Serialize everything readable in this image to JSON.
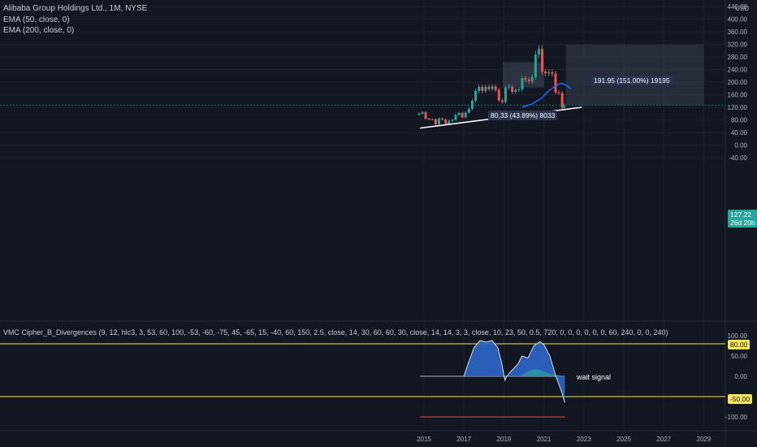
{
  "header": {
    "title": "Alibaba Group Holdings Ltd., 1M, NYSE",
    "ema50": "EMA (50, close, 0)",
    "ema200": "EMA (200, close, 0)"
  },
  "indicator": {
    "label": "VMC Cipher_B_Divergences (9, 12, hlc3, 3, 53, 60, 100, -53, -60, -75, 45, -65, 15, -40, 60, 150, 2.5, close, 14, 30, 60, 60, 30, close, 14, 14, 3, 3, close, 10, 23, 50, 0.5, 720, 0, 0, 0, 0, 0, 0, 60, 240, 0, 0, 240)",
    "annotation": "wait signal",
    "levels": {
      "upper": 80,
      "lower": -50
    },
    "level_labels": {
      "upper": "80.00",
      "lower": "-50.00"
    },
    "ticks": [
      "100.00",
      "50.00",
      "0.00",
      "-50.00",
      "-100.00"
    ]
  },
  "axis": {
    "currency": "USD",
    "price_ticks": [
      "440.00",
      "400.00",
      "360.00",
      "320.00",
      "280.00",
      "240.00",
      "200.00",
      "160.00",
      "120.00",
      "80.00",
      "40.00",
      "0.00",
      "-40.00"
    ],
    "years": [
      "2015",
      "2017",
      "2019",
      "2021",
      "2023",
      "2025",
      "2027",
      "2029"
    ]
  },
  "last_price": {
    "value": "127.22",
    "countdown": "26d 20h"
  },
  "measure_boxes": [
    {
      "label": "80.33 (43.89%) 8033",
      "from": 183,
      "to": 263
    },
    {
      "label": "191.95 (151.00%) 19195",
      "from": 127,
      "to": 319
    }
  ],
  "colors": {
    "background": "#131722",
    "up": "#26a69a",
    "down": "#ef5350",
    "ema": "#2962ff",
    "trendline": "#ffffff",
    "level": "#f5e653",
    "wave_fill": "#2e66c9",
    "money_flow": "#26a69a",
    "badge_price": "#26a69a"
  },
  "chart_data": {
    "type": "candlestick",
    "title": "Alibaba Group Holdings Ltd., 1M, NYSE",
    "x_range": [
      "2014-09",
      "2029-12"
    ],
    "y_range": [
      -40,
      440
    ],
    "series": [
      {
        "name": "EMA (50, close, 0)",
        "points": [
          [
            2019.9,
            120
          ],
          [
            2020.4,
            130
          ],
          [
            2020.9,
            150
          ],
          [
            2021.3,
            175
          ],
          [
            2021.7,
            192
          ],
          [
            2021.9,
            196
          ],
          [
            2022.2,
            187
          ],
          [
            2022.35,
            178
          ]
        ]
      },
      {
        "name": "EMA (200, close, 0)",
        "points": []
      }
    ],
    "trendline": [
      [
        2014.8,
        54
      ],
      [
        2022.9,
        120
      ]
    ],
    "closes": [
      [
        "2014-10",
        100
      ],
      [
        "2014-12",
        104
      ],
      [
        "2015-02",
        84
      ],
      [
        "2015-04",
        82
      ],
      [
        "2015-06",
        82
      ],
      [
        "2015-08",
        66
      ],
      [
        "2015-10",
        84
      ],
      [
        "2015-12",
        81
      ],
      [
        "2016-02",
        68
      ],
      [
        "2016-04",
        77
      ],
      [
        "2016-06",
        80
      ],
      [
        "2016-08",
        96
      ],
      [
        "2016-10",
        102
      ],
      [
        "2016-12",
        88
      ],
      [
        "2017-02",
        103
      ],
      [
        "2017-04",
        115
      ],
      [
        "2017-06",
        141
      ],
      [
        "2017-08",
        172
      ],
      [
        "2017-10",
        185
      ],
      [
        "2017-12",
        172
      ],
      [
        "2018-02",
        185
      ],
      [
        "2018-04",
        178
      ],
      [
        "2018-06",
        186
      ],
      [
        "2018-08",
        175
      ],
      [
        "2018-10",
        142
      ],
      [
        "2018-12",
        137
      ],
      [
        "2019-02",
        183
      ],
      [
        "2019-04",
        185
      ],
      [
        "2019-06",
        169
      ],
      [
        "2019-08",
        175
      ],
      [
        "2019-10",
        177
      ],
      [
        "2019-12",
        212
      ],
      [
        "2020-02",
        208
      ],
      [
        "2020-04",
        203
      ],
      [
        "2020-06",
        216
      ],
      [
        "2020-08",
        287
      ],
      [
        "2020-10",
        305
      ],
      [
        "2020-12",
        233
      ],
      [
        "2021-02",
        228
      ],
      [
        "2021-04",
        231
      ],
      [
        "2021-06",
        227
      ],
      [
        "2021-08",
        167
      ],
      [
        "2021-10",
        165
      ],
      [
        "2021-12",
        119
      ],
      [
        "2022-01",
        127.22
      ]
    ]
  }
}
